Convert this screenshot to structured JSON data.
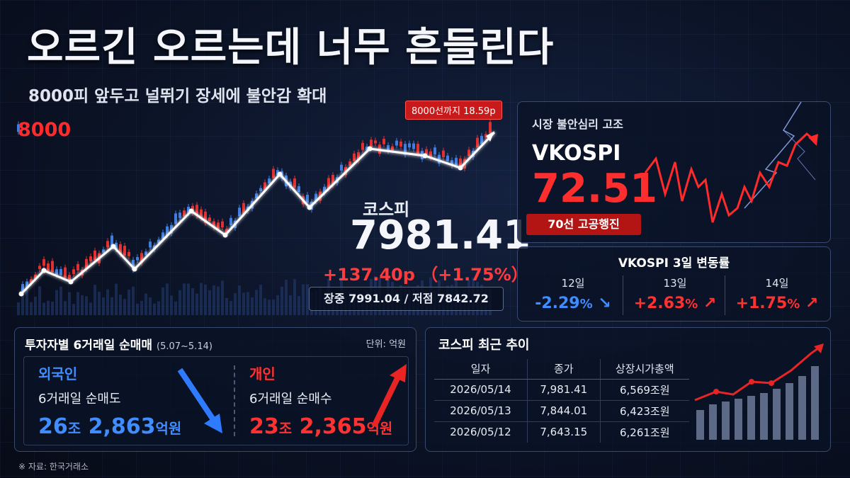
{
  "header": {
    "title": "오르긴 오르는데 너무 흔들린다",
    "subtitle": "8000피 앞두고 널뛰기 장세에 불안감 확대"
  },
  "main_chart": {
    "reference_label": "8000",
    "gap_badge": "8000선까지 18.59p",
    "colors": {
      "up": "#e23030",
      "down": "#3f7de0",
      "line": "#ffffff",
      "reference": "#ff2020"
    }
  },
  "kospi": {
    "name": "코스피",
    "value": "7981.41",
    "change": "+137.40p （+1.75%）",
    "range": "장중 7991.04 / 저점 7842.72"
  },
  "vkospi_panel": {
    "heading": "시장 불안심리 고조",
    "name": "VKOSPI",
    "value": "72.51",
    "badge": "70선 고공행진"
  },
  "vkospi_changes": {
    "title": "VKOSPI 3일 변동률",
    "items": [
      {
        "day": "12일",
        "value": "-2.29",
        "pct": "%",
        "direction": "down"
      },
      {
        "day": "13일",
        "value": "+2.63",
        "pct": "%",
        "direction": "up"
      },
      {
        "day": "14일",
        "value": "+1.75",
        "pct": "%",
        "direction": "up"
      }
    ]
  },
  "investors": {
    "title": "투자자별 6거래일 순매매",
    "period": "(5.07~5.14)",
    "unit": "단위: 억원",
    "foreign": {
      "label": "외국인",
      "desc": "6거래일 순매도",
      "amount_jo": "26",
      "jo": "조",
      "amount_eok": "2,863",
      "eok": "억원"
    },
    "individual": {
      "label": "개인",
      "desc": "6거래일 순매수",
      "amount_jo": "23",
      "jo": "조",
      "amount_eok": "2,365",
      "eok": "억원"
    }
  },
  "trend": {
    "title": "코스피 최근 추이",
    "headers": [
      "일자",
      "종가",
      "상장시가총액"
    ],
    "rows": [
      [
        "2026/05/14",
        "7,981.41",
        "6,569조원"
      ],
      [
        "2026/05/13",
        "7,844.01",
        "6,423조원"
      ],
      [
        "2026/05/12",
        "7,643.15",
        "6,261조원"
      ]
    ]
  },
  "source": "※ 자료: 한국거래소"
}
